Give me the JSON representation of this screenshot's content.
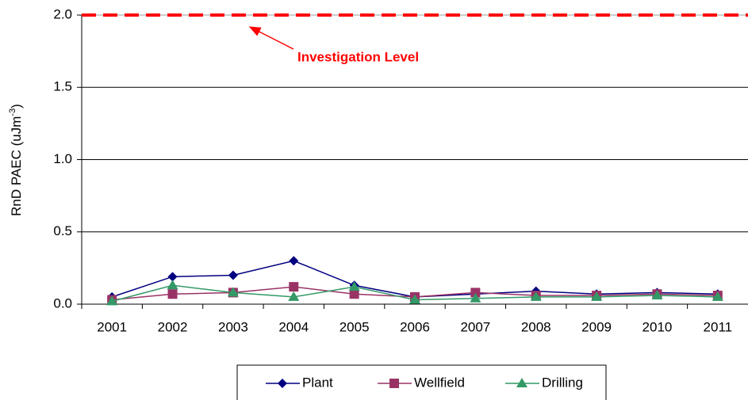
{
  "chart_data": {
    "type": "line",
    "y_label": [
      "RnD PAEC (uJm",
      "-3",
      ")"
    ],
    "categories": [
      "2001",
      "2002",
      "2003",
      "2004",
      "2005",
      "2006",
      "2007",
      "2008",
      "2009",
      "2010",
      "2011"
    ],
    "series": [
      {
        "name": "Plant",
        "color": "#000080",
        "marker": "diamond",
        "values": [
          0.05,
          0.19,
          0.2,
          0.3,
          0.13,
          0.05,
          0.07,
          0.09,
          0.07,
          0.08,
          0.07
        ]
      },
      {
        "name": "Wellfield",
        "color": "#993366",
        "marker": "square",
        "values": [
          0.03,
          0.07,
          0.08,
          0.12,
          0.07,
          0.05,
          0.08,
          0.06,
          0.06,
          0.07,
          0.06
        ]
      },
      {
        "name": "Drilling",
        "color": "#339966",
        "marker": "triangle",
        "values": [
          0.02,
          0.13,
          0.08,
          0.05,
          0.12,
          0.03,
          0.04,
          0.05,
          0.05,
          0.06,
          0.05
        ]
      }
    ],
    "ylim": [
      0,
      2.0
    ],
    "yticks": [
      {
        "value": 0,
        "label": "0.0"
      },
      {
        "value": 0.5,
        "label": "0.5"
      },
      {
        "value": 1.0,
        "label": "1.0"
      },
      {
        "value": 1.5,
        "label": "1.5"
      },
      {
        "value": 2.0,
        "label": "2.0"
      }
    ],
    "grid": true,
    "legend": "bottom",
    "reference_line": {
      "value": 2.0,
      "label": "Investigation Level",
      "color": "#ff0000"
    }
  }
}
